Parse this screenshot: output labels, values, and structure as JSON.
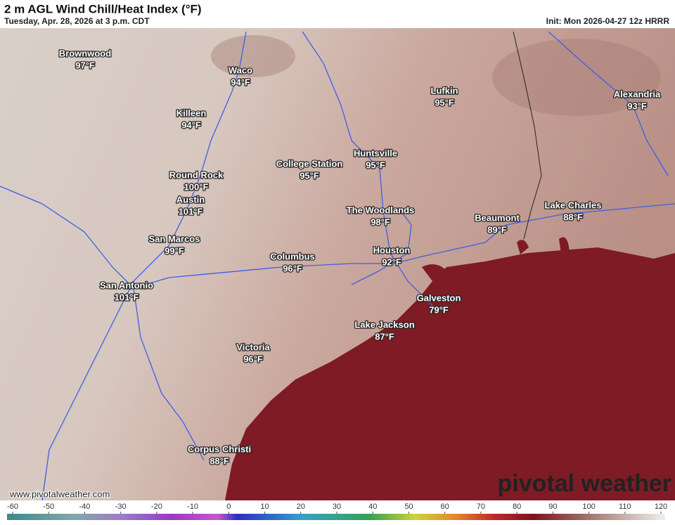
{
  "header": {
    "title": "2 m AGL Wind Chill/Heat Index (°F)",
    "subtitle": "Tuesday, Apr. 28, 2026 at 3 p.m. CDT",
    "init": "Init: Mon 2026-04-27 12z HRRR"
  },
  "cities": [
    {
      "name": "Brownwood",
      "temp": "97°F"
    },
    {
      "name": "Waco",
      "temp": "94°F"
    },
    {
      "name": "Killeen",
      "temp": "94°F"
    },
    {
      "name": "Lufkin",
      "temp": "95°F"
    },
    {
      "name": "Alexandria",
      "temp": "93°F"
    },
    {
      "name": "Huntsville",
      "temp": "95°F"
    },
    {
      "name": "College Station",
      "temp": "95°F"
    },
    {
      "name": "Round Rock",
      "temp": "100°F"
    },
    {
      "name": "Austin",
      "temp": "101°F"
    },
    {
      "name": "The Woodlands",
      "temp": "98°F"
    },
    {
      "name": "Beaumont",
      "temp": "89°F"
    },
    {
      "name": "Lake Charles",
      "temp": "88°F"
    },
    {
      "name": "San Marcos",
      "temp": "99°F"
    },
    {
      "name": "Columbus",
      "temp": "96°F"
    },
    {
      "name": "Houston",
      "temp": "92°F"
    },
    {
      "name": "San Antonio",
      "temp": "101°F"
    },
    {
      "name": "Galveston",
      "temp": "79°F"
    },
    {
      "name": "Lake Jackson",
      "temp": "87°F"
    },
    {
      "name": "Victoria",
      "temp": "96°F"
    },
    {
      "name": "Corpus Christi",
      "temp": "88°F"
    }
  ],
  "footer": {
    "website": "www.pivotalweather.com",
    "logo": "pivotal weather"
  },
  "colorbar": {
    "ticks": [
      -60,
      -50,
      -40,
      -30,
      -20,
      -10,
      0,
      10,
      20,
      30,
      40,
      50,
      60,
      70,
      80,
      90,
      100,
      110,
      120
    ]
  }
}
